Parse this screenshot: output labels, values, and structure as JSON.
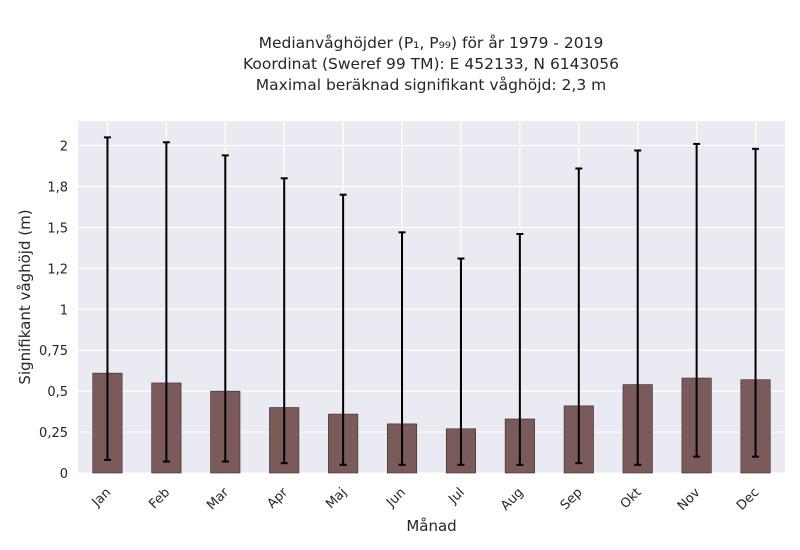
{
  "chart_data": {
    "type": "bar",
    "title_lines": [
      "Medianvåghöjder (P₁, P₉₉) för år 1979 - 2019",
      "Koordinat (Sweref 99 TM): E 452133, N 6143056",
      "Maximal beräknad signifikant våghöjd: 2,3 m"
    ],
    "xlabel": "Månad",
    "ylabel": "Signifikant våghöjd (m)",
    "categories": [
      "Jan",
      "Feb",
      "Mar",
      "Apr",
      "Maj",
      "Jun",
      "Jul",
      "Aug",
      "Sep",
      "Okt",
      "Nov",
      "Dec"
    ],
    "values": [
      0.61,
      0.55,
      0.5,
      0.4,
      0.36,
      0.3,
      0.27,
      0.33,
      0.41,
      0.54,
      0.58,
      0.57
    ],
    "p1": [
      0.08,
      0.07,
      0.07,
      0.06,
      0.05,
      0.05,
      0.05,
      0.05,
      0.06,
      0.05,
      0.1,
      0.1
    ],
    "p99": [
      2.05,
      2.02,
      1.94,
      1.8,
      1.7,
      1.47,
      1.31,
      1.46,
      1.86,
      1.97,
      2.01,
      1.98
    ],
    "ylim": [
      0,
      2.15
    ],
    "yticks": [
      0,
      0.25,
      0.5,
      0.75,
      1,
      1.25,
      1.5,
      1.75,
      2
    ],
    "ytick_labels": [
      "0",
      "0,25",
      "0,5",
      "0,75",
      "1",
      "1,2",
      "1,5",
      "1,8",
      "2"
    ],
    "grid": true,
    "colors": {
      "bar": "#7b5a5a",
      "plot_bg": "#eaeaf2",
      "grid": "#ffffff",
      "errorbar": "#000000"
    }
  }
}
